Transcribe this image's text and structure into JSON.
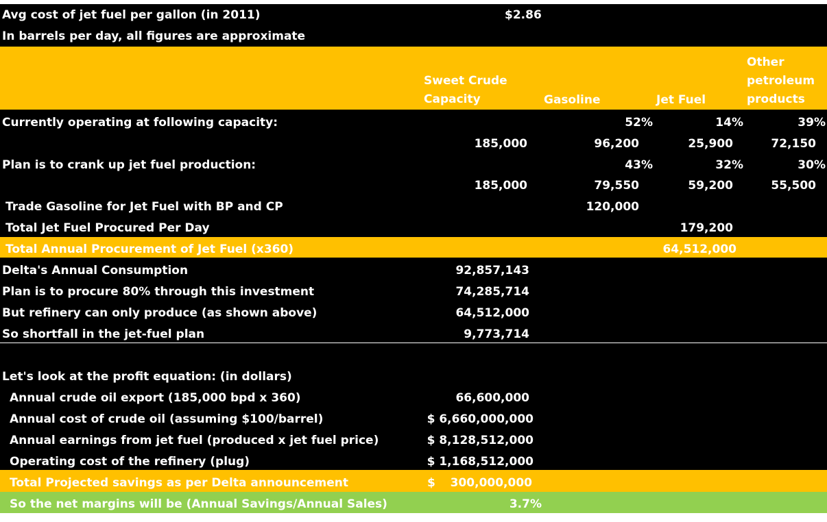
{
  "header": {
    "avg_cost_label": "Avg cost of jet fuel per gallon (in 2011)",
    "avg_cost_value": "$2.86",
    "note": "In barrels per day, all figures are approximate"
  },
  "columns": {
    "sweet_crude": [
      "Sweet Crude",
      "Capacity"
    ],
    "gasoline": "Gasoline",
    "jet_fuel": "Jet Fuel",
    "other": [
      "Other",
      "petroleum",
      "products"
    ]
  },
  "current": {
    "label": "Currently operating at following capacity:",
    "gasoline_pct": "52%",
    "jet_pct": "14%",
    "other_pct": "39%",
    "sweet_crude": "185,000",
    "gasoline": "96,200",
    "jet": "25,900",
    "other": "72,150"
  },
  "plan": {
    "label": "Plan is to crank up jet fuel production:",
    "gasoline_pct": "43%",
    "jet_pct": "32%",
    "other_pct": "30%",
    "sweet_crude": "185,000",
    "gasoline": "79,550",
    "jet": "59,200",
    "other": "55,500"
  },
  "trade": {
    "label": "Trade Gasoline for Jet Fuel with BP and CP",
    "gasoline": "120,000"
  },
  "total_jet_day": {
    "label": "Total Jet Fuel Procured Per Day",
    "jet": "179,200"
  },
  "total_annual": {
    "label": "Total Annual Procurement  of Jet Fuel (x360)",
    "jet": "64,512,000"
  },
  "consumption": [
    {
      "label": "Delta's Annual Consumption",
      "value": "92,857,143"
    },
    {
      "label": "Plan is to procure 80% through this investment",
      "value": "74,285,714"
    },
    {
      "label": "But refinery can only produce (as shown above)",
      "value": "64,512,000"
    },
    {
      "label": "So shortfall in the jet-fuel plan",
      "value": "9,773,714"
    }
  ],
  "profit": {
    "heading": "Let's look at the profit equation: (in dollars)",
    "rows": [
      {
        "label": "Annual crude oil export (185,000 bpd x 360)",
        "value": "66,600,000"
      },
      {
        "label": "Annual cost of crude oil (assuming $100/barrel)",
        "value": "$ 6,660,000,000"
      },
      {
        "label": "Annual earnings from jet fuel (produced x jet fuel price)",
        "value": "$ 8,128,512,000"
      },
      {
        "label": "Operating cost of the refinery (plug)",
        "value": "$ 1,168,512,000"
      }
    ],
    "savings_label": "Total Projected savings as per Delta announcement",
    "savings_currency": "$",
    "savings_value": "300,000,000",
    "margin_label": "So the net margins will be (Annual Savings/Annual Sales)",
    "margin_value": "3.7%"
  },
  "colors": {
    "black": "#000000",
    "yellow": "#ffc000",
    "green": "#92d050",
    "text": "#ffffff"
  }
}
